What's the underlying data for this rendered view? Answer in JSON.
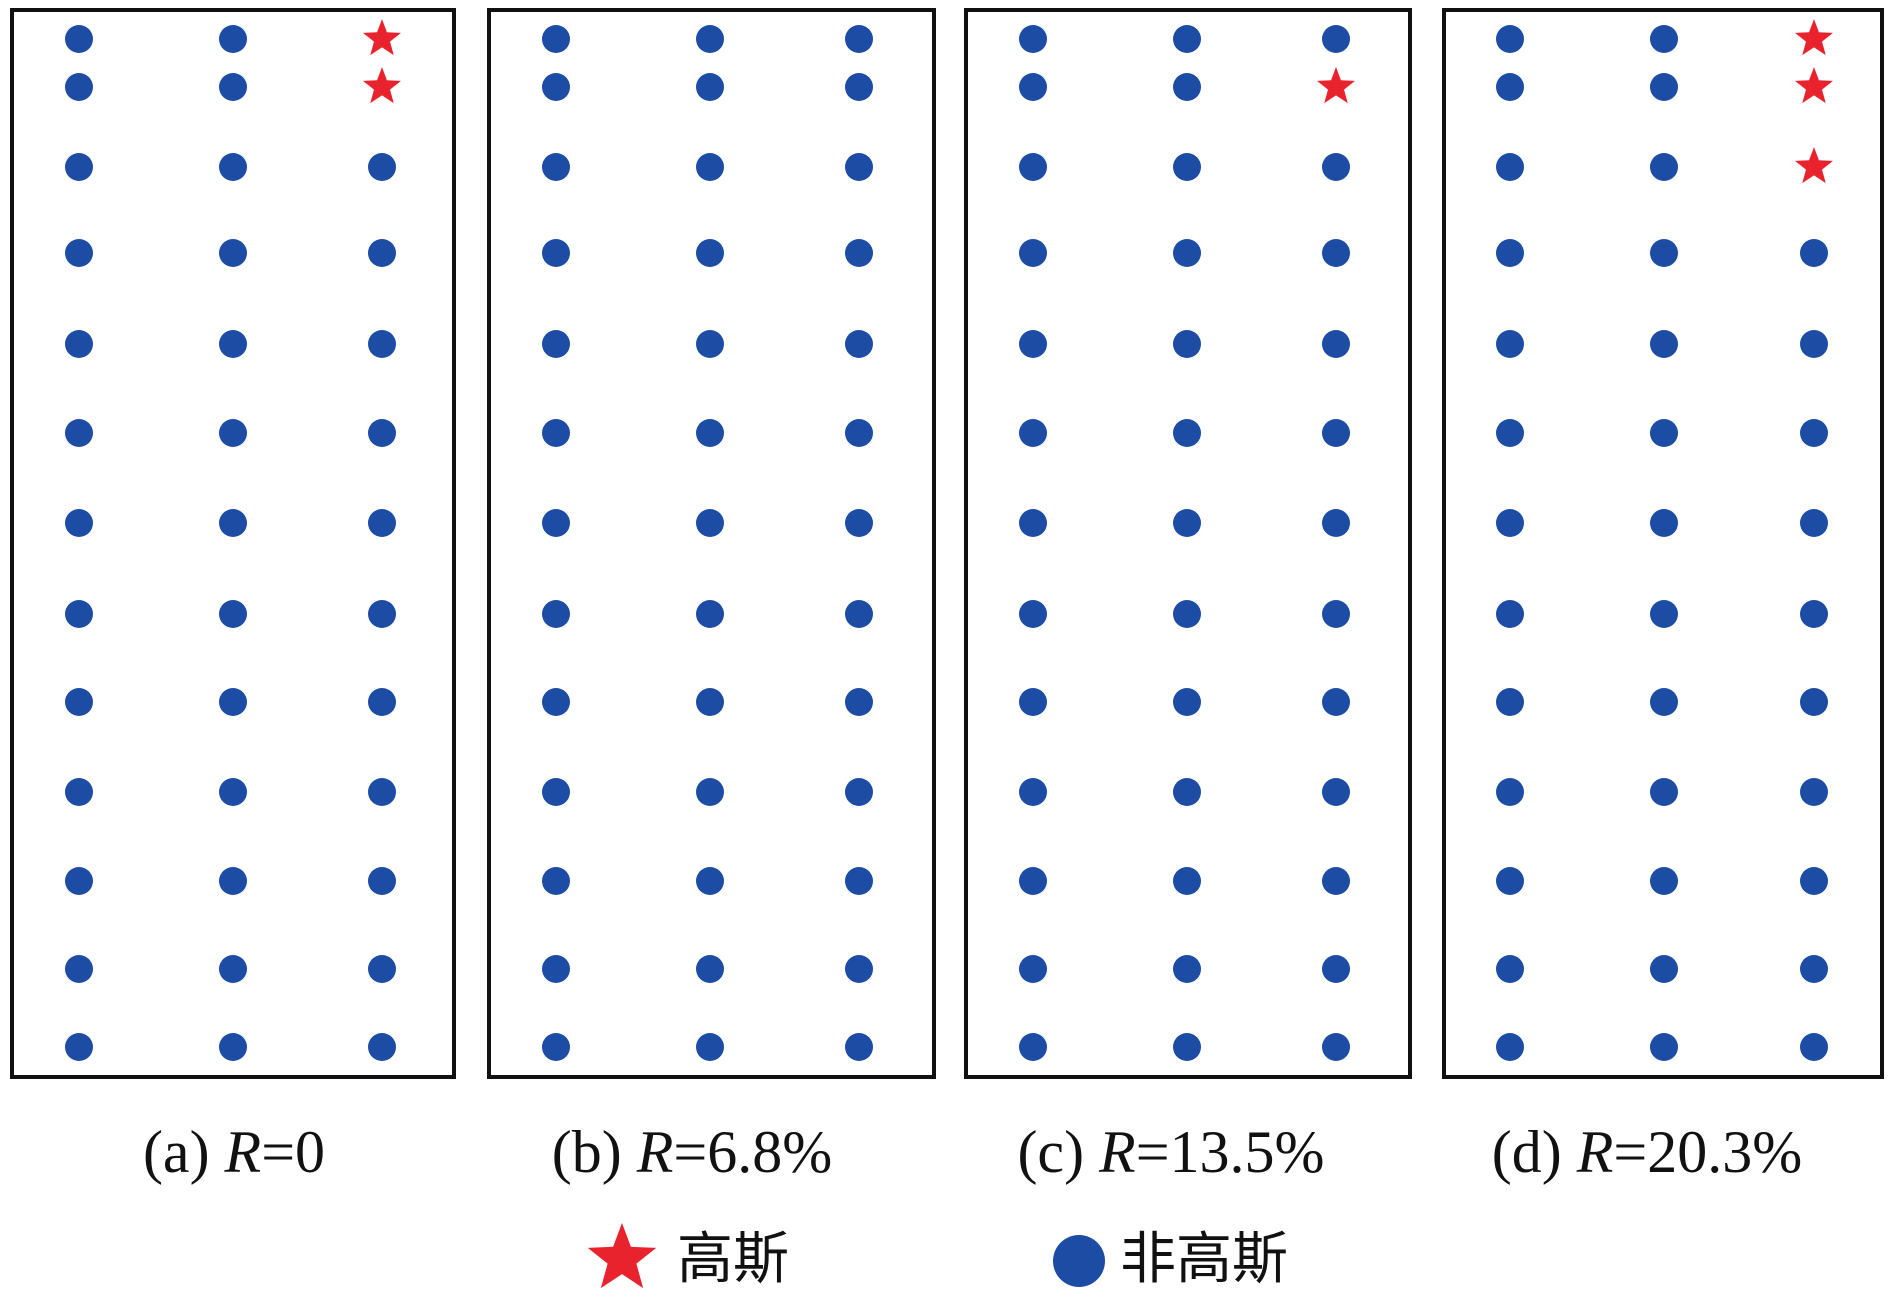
{
  "colors": {
    "gaussian": "#e8232e",
    "non_gaussian": "#1c4ca3",
    "frame": "#111111"
  },
  "panels": [
    {
      "label": "(a)",
      "r_symbol": "R",
      "r_value": "=0",
      "stars": [
        [
          2,
          0
        ],
        [
          2,
          1
        ]
      ]
    },
    {
      "label": "(b)",
      "r_symbol": "R",
      "r_value": "=6.8%",
      "stars": []
    },
    {
      "label": "(c)",
      "r_symbol": "R",
      "r_value": "=13.5%",
      "stars": [
        [
          2,
          1
        ]
      ]
    },
    {
      "label": "(d)",
      "r_symbol": "R",
      "r_value": "=20.3%",
      "stars": [
        [
          2,
          0
        ],
        [
          2,
          1
        ],
        [
          2,
          2
        ]
      ]
    }
  ],
  "legend": {
    "gaussian_label": "高斯",
    "non_gaussian_label": "非高斯",
    "gaussian_icon": "red-star-icon",
    "non_gaussian_icon": "blue-circle-icon"
  }
}
